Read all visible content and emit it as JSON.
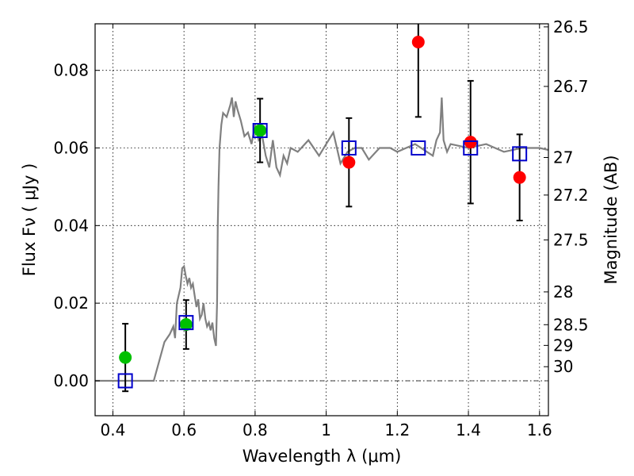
{
  "chart_data": {
    "type": "scatter",
    "title": "",
    "xlabel": "Wavelength  λ (μm)",
    "ylabel": "Flux  Fν  ( μJy )",
    "ylabel_right": "Magnitude (AB)",
    "xlim": [
      0.35,
      1.625
    ],
    "ylim": [
      -0.009,
      0.092
    ],
    "grid": true,
    "x_ticks": [
      {
        "value": 0.4,
        "label": "0.4"
      },
      {
        "value": 0.6,
        "label": "0.6"
      },
      {
        "value": 0.8,
        "label": "0.8"
      },
      {
        "value": 1.0,
        "label": "1"
      },
      {
        "value": 1.2,
        "label": "1.2"
      },
      {
        "value": 1.4,
        "label": "1.4"
      },
      {
        "value": 1.6,
        "label": "1.6"
      }
    ],
    "y_ticks": [
      {
        "value": 0.0,
        "label": "0.00"
      },
      {
        "value": 0.02,
        "label": "0.02"
      },
      {
        "value": 0.04,
        "label": "0.04"
      },
      {
        "value": 0.06,
        "label": "0.06"
      },
      {
        "value": 0.08,
        "label": "0.08"
      }
    ],
    "y2_ticks": [
      {
        "value": 26.5,
        "label": "26.5"
      },
      {
        "value": 26.7,
        "label": "26.7"
      },
      {
        "value": 27,
        "label": "27"
      },
      {
        "value": 27.2,
        "label": "27.2"
      },
      {
        "value": 27.5,
        "label": "27.5"
      },
      {
        "value": 28,
        "label": "28"
      },
      {
        "value": 28.5,
        "label": "28.5"
      },
      {
        "value": 29,
        "label": "29"
      },
      {
        "value": 30,
        "label": "30"
      }
    ],
    "model_spectrum": {
      "color": "#808080",
      "x": [
        0.35,
        0.515,
        0.53,
        0.545,
        0.56,
        0.57,
        0.575,
        0.58,
        0.59,
        0.595,
        0.6,
        0.605,
        0.61,
        0.615,
        0.62,
        0.625,
        0.63,
        0.635,
        0.64,
        0.645,
        0.65,
        0.655,
        0.66,
        0.665,
        0.67,
        0.675,
        0.68,
        0.685,
        0.69,
        0.693,
        0.695,
        0.697,
        0.7,
        0.705,
        0.71,
        0.72,
        0.73,
        0.735,
        0.74,
        0.745,
        0.75,
        0.76,
        0.77,
        0.78,
        0.79,
        0.8,
        0.81,
        0.82,
        0.83,
        0.84,
        0.85,
        0.86,
        0.87,
        0.88,
        0.89,
        0.9,
        0.92,
        0.95,
        0.98,
        1.0,
        1.02,
        1.04,
        1.06,
        1.08,
        1.1,
        1.12,
        1.15,
        1.18,
        1.2,
        1.25,
        1.3,
        1.31,
        1.32,
        1.325,
        1.33,
        1.34,
        1.35,
        1.4,
        1.45,
        1.5,
        1.55,
        1.6,
        1.625
      ],
      "y": [
        0.0,
        0.0,
        0.005,
        0.01,
        0.012,
        0.014,
        0.011,
        0.02,
        0.024,
        0.029,
        0.0295,
        0.027,
        0.025,
        0.0265,
        0.024,
        0.025,
        0.022,
        0.019,
        0.021,
        0.016,
        0.017,
        0.02,
        0.016,
        0.014,
        0.015,
        0.013,
        0.015,
        0.011,
        0.009,
        0.02,
        0.04,
        0.05,
        0.06,
        0.066,
        0.069,
        0.068,
        0.071,
        0.073,
        0.068,
        0.072,
        0.07,
        0.067,
        0.063,
        0.064,
        0.061,
        0.066,
        0.062,
        0.063,
        0.058,
        0.055,
        0.062,
        0.055,
        0.053,
        0.058,
        0.056,
        0.06,
        0.059,
        0.062,
        0.058,
        0.061,
        0.064,
        0.056,
        0.059,
        0.06,
        0.06,
        0.057,
        0.06,
        0.06,
        0.059,
        0.061,
        0.058,
        0.062,
        0.064,
        0.073,
        0.062,
        0.059,
        0.061,
        0.06,
        0.061,
        0.059,
        0.06,
        0.06,
        0.0595
      ]
    },
    "series": [
      {
        "name": "",
        "marker": "circle",
        "color": "#00c000",
        "points": [
          {
            "x": 0.435,
            "y": 0.006,
            "yerr": 0.0087
          },
          {
            "x": 0.606,
            "y": 0.0145,
            "yerr": 0.0063
          },
          {
            "x": 0.814,
            "y": 0.0645,
            "yerr": 0.0082
          }
        ]
      },
      {
        "name": "",
        "marker": "circle",
        "color": "#ff0000",
        "points": [
          {
            "x": 1.064,
            "y": 0.0563,
            "yerr": 0.0114
          },
          {
            "x": 1.259,
            "y": 0.0873,
            "yerr": 0.0193
          },
          {
            "x": 1.406,
            "y": 0.0615,
            "yerr": 0.0158
          },
          {
            "x": 1.544,
            "y": 0.0524,
            "yerr": 0.0111
          }
        ]
      },
      {
        "name": "",
        "marker": "square",
        "color": "#0000cc",
        "points": [
          {
            "x": 0.435,
            "y": 0.0
          },
          {
            "x": 0.606,
            "y": 0.015
          },
          {
            "x": 0.814,
            "y": 0.0645
          },
          {
            "x": 1.064,
            "y": 0.06
          },
          {
            "x": 1.259,
            "y": 0.06
          },
          {
            "x": 1.406,
            "y": 0.06
          },
          {
            "x": 1.544,
            "y": 0.0585
          }
        ]
      }
    ]
  }
}
